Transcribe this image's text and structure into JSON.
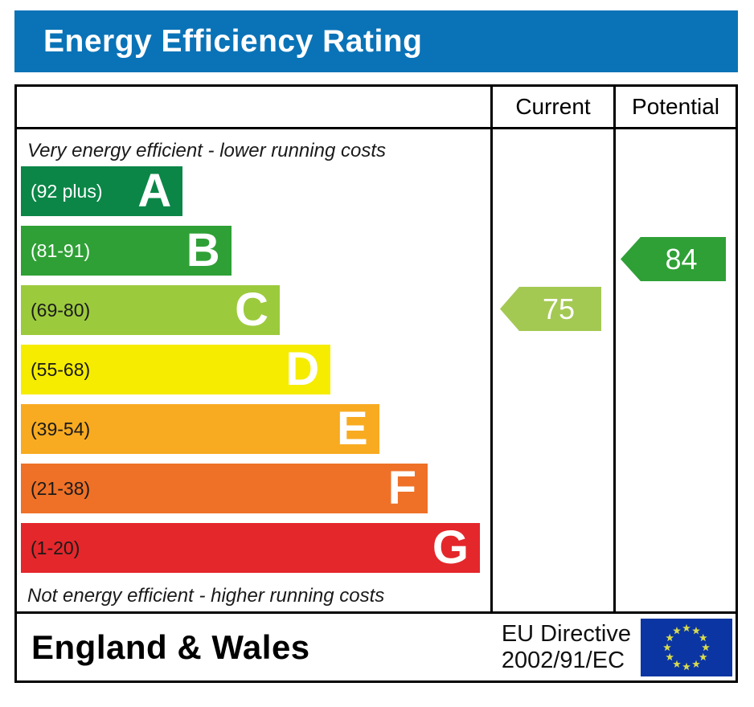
{
  "title": "Energy Efficiency Rating",
  "columns": {
    "current": "Current",
    "potential": "Potential"
  },
  "captions": {
    "top": "Very energy efficient - lower running costs",
    "bottom": "Not energy efficient - higher running costs"
  },
  "chart_data": {
    "type": "bar",
    "title": "Energy Efficiency Rating",
    "region": "England & Wales",
    "bands": [
      {
        "letter": "A",
        "range": "(92 plus)",
        "color": "#0b8647",
        "label_color": "#ffffff",
        "width_pct": 35
      },
      {
        "letter": "B",
        "range": "(81-91)",
        "color": "#2fa036",
        "label_color": "#ffffff",
        "width_pct": 45.5
      },
      {
        "letter": "C",
        "range": "(69-80)",
        "color": "#9cca3d",
        "label_color": "#1a1a1a",
        "width_pct": 56
      },
      {
        "letter": "D",
        "range": "(55-68)",
        "color": "#f5ec00",
        "label_color": "#1a1a1a",
        "width_pct": 67
      },
      {
        "letter": "E",
        "range": "(39-54)",
        "color": "#f8ab21",
        "label_color": "#1a1a1a",
        "width_pct": 77.5
      },
      {
        "letter": "F",
        "range": "(21-38)",
        "color": "#ee7127",
        "label_color": "#1a1a1a",
        "width_pct": 88
      },
      {
        "letter": "G",
        "range": "(1-20)",
        "color": "#e4272b",
        "label_color": "#1a1a1a",
        "width_pct": 99.3
      }
    ],
    "current": {
      "value": "75",
      "band": "C",
      "color": "#a4c953"
    },
    "potential": {
      "value": "84",
      "band": "B",
      "color": "#2fa036"
    }
  },
  "footer": {
    "region": "England & Wales",
    "directive_line1": "EU Directive",
    "directive_line2": "2002/91/EC",
    "flag": {
      "field": "#0b35a2",
      "stars": "#d7da4f"
    }
  },
  "theme": {
    "title_bg": "#0a73b7",
    "title_text": "#ffffff",
    "border": "#000000"
  }
}
